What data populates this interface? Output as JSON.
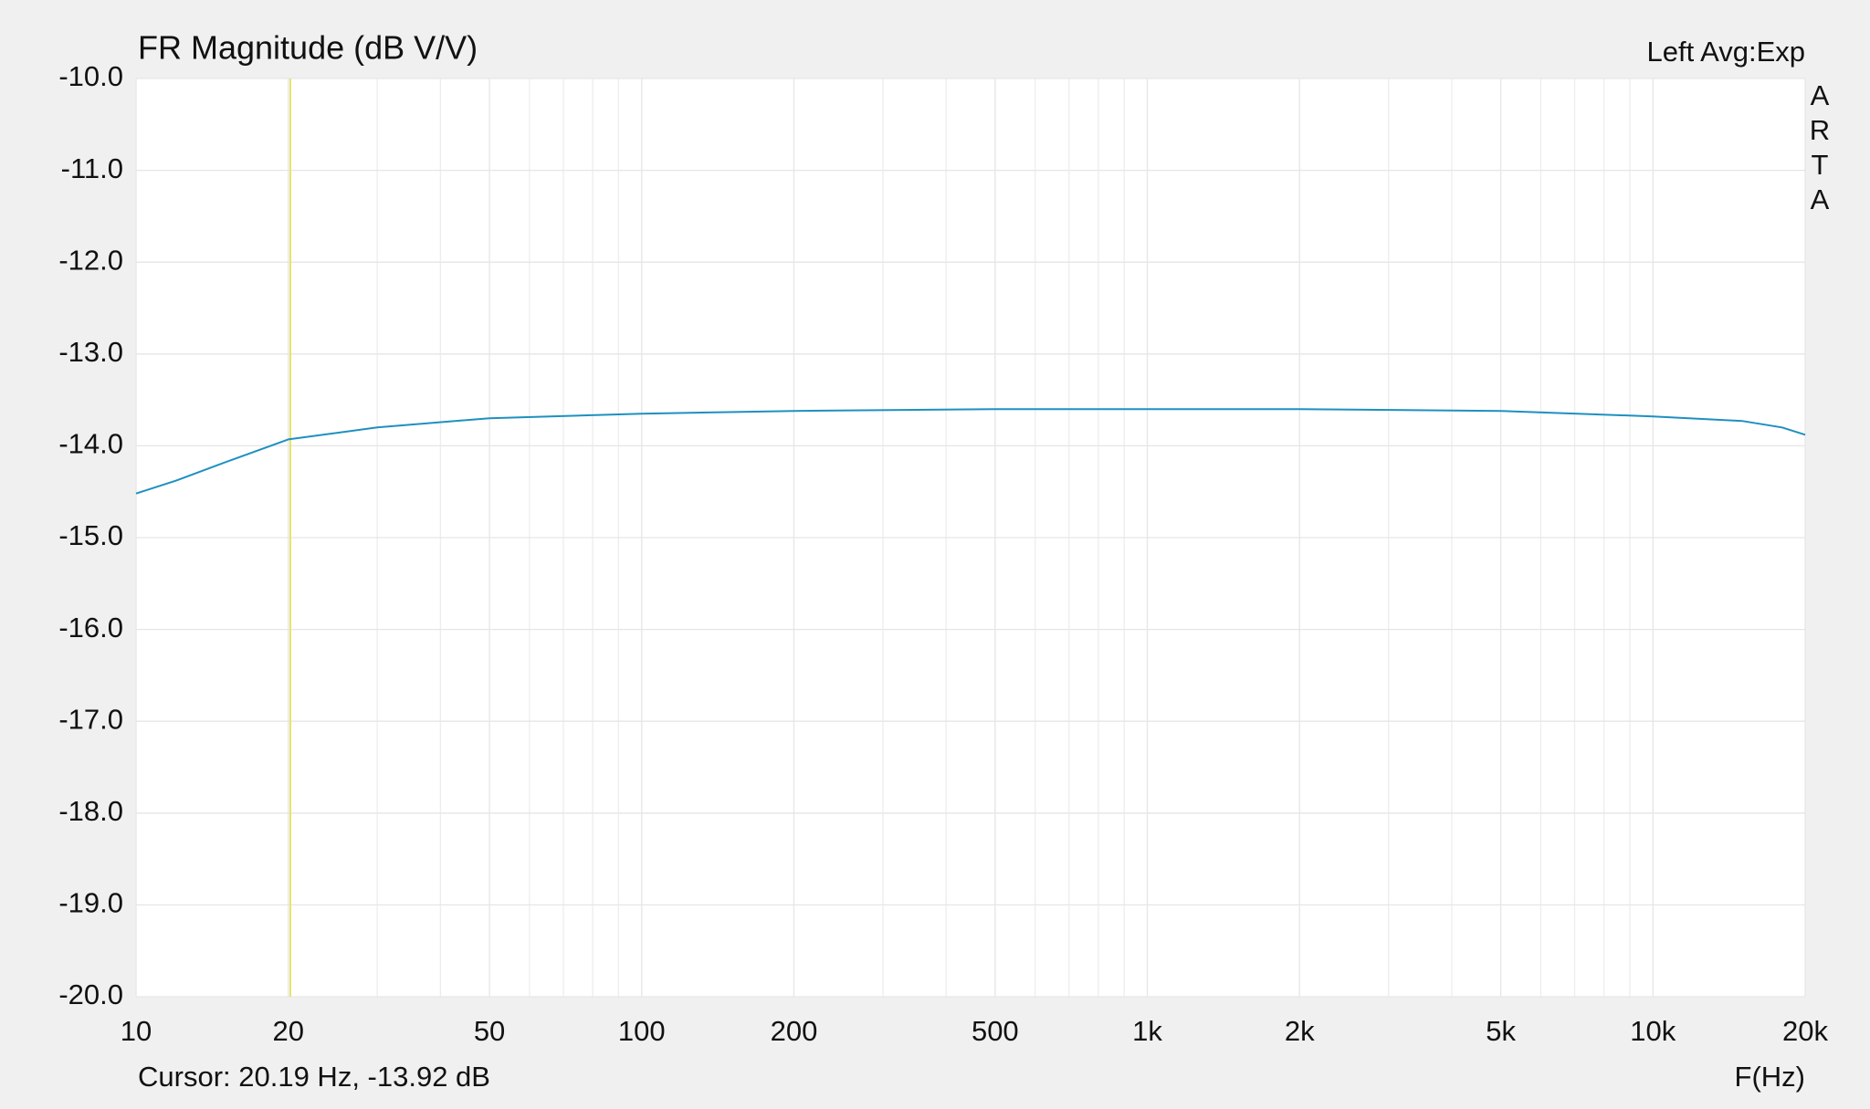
{
  "chart_data": {
    "type": "line",
    "title": "FR Magnitude (dB V/V)",
    "channel_label": "Left  Avg:Exp",
    "brand": "ARTA",
    "x_label": "F(Hz)",
    "log_x": true,
    "grid": true,
    "x": [
      10,
      12,
      15,
      20,
      30,
      50,
      100,
      200,
      500,
      1000,
      2000,
      5000,
      10000,
      15000,
      18000,
      20000
    ],
    "series": [
      {
        "name": "Left",
        "color": "#1e90c0",
        "values": [
          -14.52,
          -14.38,
          -14.18,
          -13.93,
          -13.8,
          -13.7,
          -13.65,
          -13.62,
          -13.6,
          -13.6,
          -13.6,
          -13.62,
          -13.68,
          -13.73,
          -13.8,
          -13.88
        ]
      }
    ],
    "xlim": [
      10,
      20000
    ],
    "xticks": [
      10,
      20,
      50,
      100,
      200,
      500,
      {
        "value": 1000,
        "label": "1k"
      },
      {
        "value": 2000,
        "label": "2k"
      },
      {
        "value": 5000,
        "label": "5k"
      },
      {
        "value": 10000,
        "label": "10k"
      },
      {
        "value": 20000,
        "label": "20k"
      }
    ],
    "xminor": [
      30,
      40,
      60,
      70,
      80,
      90,
      300,
      400,
      600,
      700,
      800,
      900,
      3000,
      4000,
      6000,
      7000,
      8000,
      9000
    ],
    "ylim": [
      -20,
      -10
    ],
    "yticks": [
      {
        "value": -10,
        "label": "-10.0"
      },
      {
        "value": -11,
        "label": "-11.0"
      },
      {
        "value": -12,
        "label": "-12.0"
      },
      {
        "value": -13,
        "label": "-13.0"
      },
      {
        "value": -14,
        "label": "-14.0"
      },
      {
        "value": -15,
        "label": "-15.0"
      },
      {
        "value": -16,
        "label": "-16.0"
      },
      {
        "value": -17,
        "label": "-17.0"
      },
      {
        "value": -18,
        "label": "-18.0"
      },
      {
        "value": -19,
        "label": "-19.0"
      },
      {
        "value": -20,
        "label": "-20.0"
      }
    ],
    "cursor": {
      "x": 20.19,
      "y": -13.92,
      "color": "#e4e46a",
      "label": "Cursor: 20.19 Hz, -13.92 dB"
    }
  }
}
